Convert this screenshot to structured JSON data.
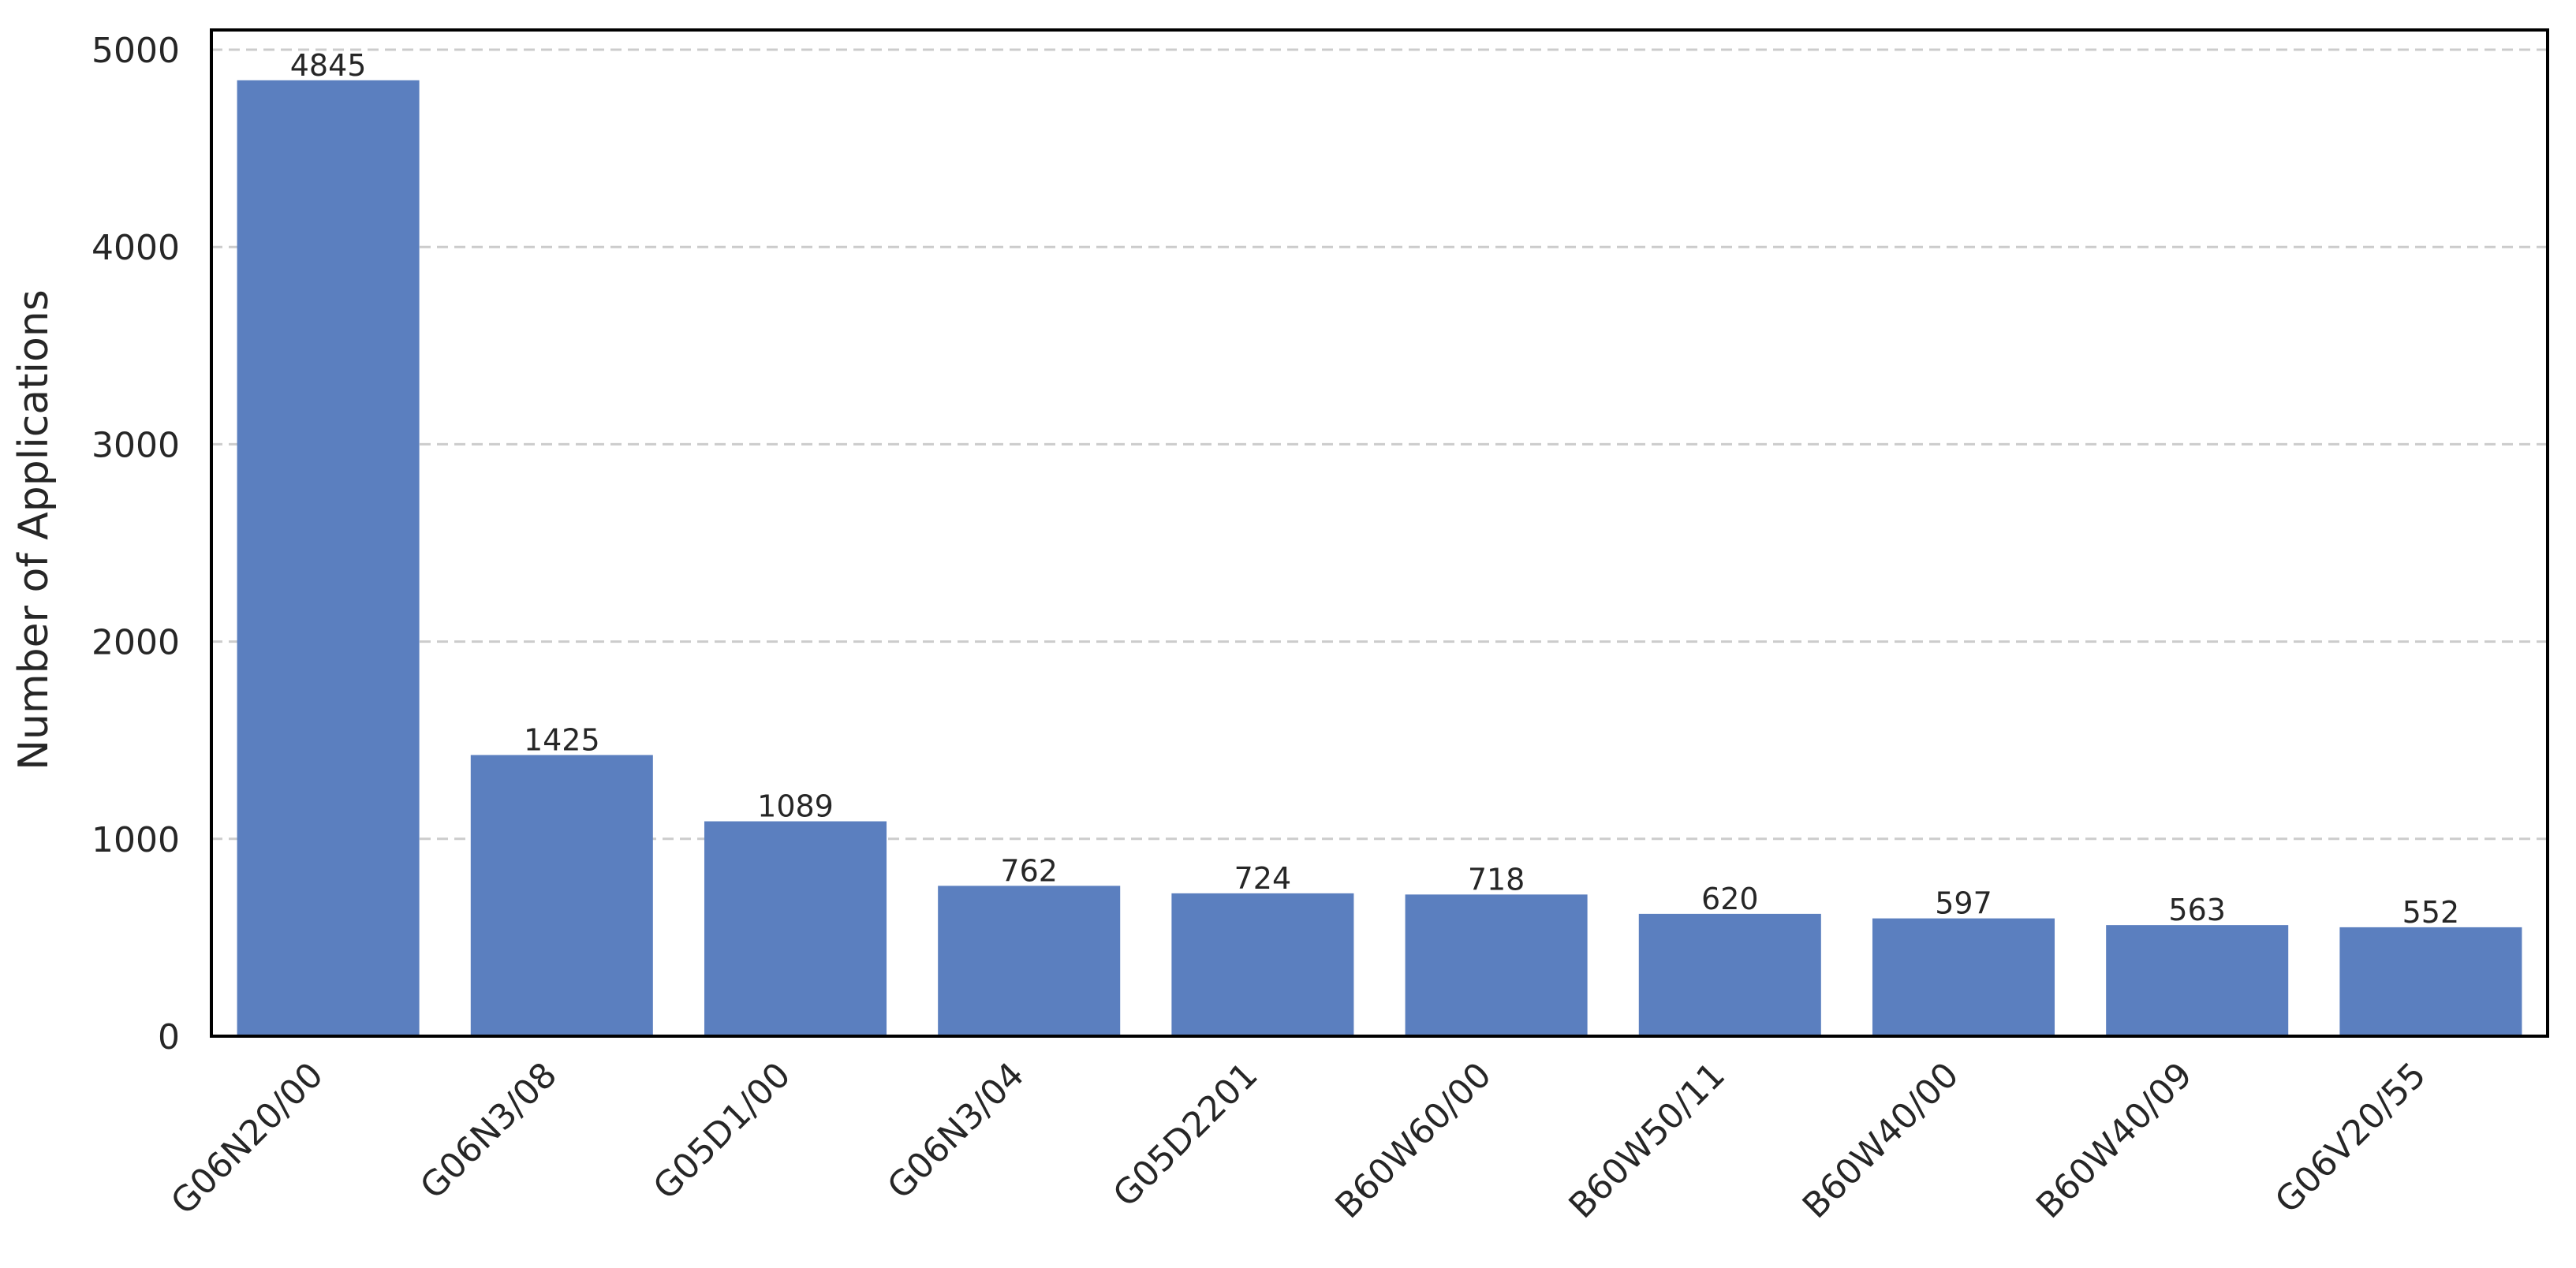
{
  "chart_data": {
    "type": "bar",
    "title": "",
    "xlabel": "",
    "ylabel": "Number of Applications",
    "categories": [
      "G06N20/00",
      "G06N3/08",
      "G05D1/00",
      "G06N3/04",
      "G05D2201",
      "B60W60/00",
      "B60W50/11",
      "B60W40/00",
      "B60W40/09",
      "G06V20/55"
    ],
    "values": [
      4845,
      1425,
      1089,
      762,
      724,
      718,
      620,
      597,
      563,
      552
    ],
    "data_labels": [
      "4845",
      "1425",
      "1089",
      "762",
      "724",
      "718",
      "620",
      "597",
      "563",
      "552"
    ],
    "yticks": [
      0,
      1000,
      2000,
      3000,
      4000,
      5000
    ],
    "ytick_labels": [
      "0",
      "1000",
      "2000",
      "3000",
      "4000",
      "5000"
    ],
    "ylim": [
      0,
      5100
    ],
    "grid": "y-dashed",
    "legend": "none",
    "bar_color": "#5b7fbf",
    "grid_color": "#cccccc"
  }
}
